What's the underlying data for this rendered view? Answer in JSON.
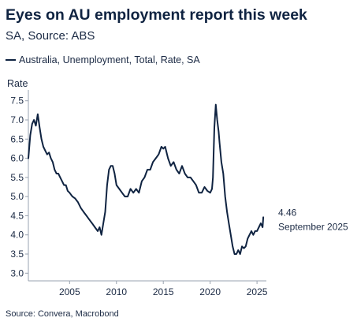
{
  "title": "Eyes on AU employment report this week",
  "subtitle": "SA, Source: ABS",
  "legend": {
    "label": "Australia, Unemployment, Total, Rate, SA"
  },
  "source": "Source: Convera, Macrobond",
  "colors": {
    "line": "#0f2341",
    "axis": "#9aa3b0",
    "text": "#1b2a44"
  },
  "chart_data": {
    "type": "line",
    "title": "Eyes on AU employment report this week",
    "subtitle": "SA, Source: ABS",
    "ylabel": "Rate",
    "xlabel": "",
    "ylim": [
      2.8,
      7.7
    ],
    "xlim": [
      2000.6,
      2026.0
    ],
    "yticks": [
      3.0,
      3.5,
      4.0,
      4.5,
      5.0,
      5.5,
      6.0,
      6.5,
      7.0,
      7.5
    ],
    "ytick_labels": [
      "3.0",
      "3.5",
      "4.0",
      "4.5",
      "5.0",
      "5.5",
      "6.0",
      "6.5",
      "7.0",
      "7.5"
    ],
    "xticks": [
      2005,
      2010,
      2015,
      2020,
      2025
    ],
    "xtick_labels": [
      "2005",
      "2010",
      "2015",
      "2020",
      "2025"
    ],
    "grid": false,
    "legend_position": "top-left",
    "series": [
      {
        "name": "Australia, Unemployment, Total, Rate, SA",
        "x": [
          2000.6,
          2000.8,
          2001.0,
          2001.2,
          2001.4,
          2001.6,
          2001.8,
          2002.0,
          2002.2,
          2002.4,
          2002.6,
          2002.8,
          2003.0,
          2003.2,
          2003.4,
          2003.6,
          2003.8,
          2004.0,
          2004.2,
          2004.4,
          2004.6,
          2004.8,
          2005.0,
          2005.3,
          2005.6,
          2005.9,
          2006.2,
          2006.5,
          2006.8,
          2007.1,
          2007.4,
          2007.7,
          2008.0,
          2008.2,
          2008.4,
          2008.6,
          2008.8,
          2009.0,
          2009.2,
          2009.4,
          2009.6,
          2009.8,
          2010.0,
          2010.3,
          2010.6,
          2010.9,
          2011.2,
          2011.5,
          2011.8,
          2012.1,
          2012.4,
          2012.7,
          2013.0,
          2013.3,
          2013.6,
          2013.9,
          2014.2,
          2014.5,
          2014.8,
          2015.0,
          2015.2,
          2015.5,
          2015.8,
          2016.1,
          2016.4,
          2016.7,
          2017.0,
          2017.3,
          2017.6,
          2017.9,
          2018.2,
          2018.5,
          2018.8,
          2019.1,
          2019.4,
          2019.7,
          2020.0,
          2020.2,
          2020.3,
          2020.45,
          2020.6,
          2020.75,
          2020.9,
          2021.0,
          2021.2,
          2021.4,
          2021.6,
          2021.8,
          2022.0,
          2022.2,
          2022.4,
          2022.6,
          2022.8,
          2023.0,
          2023.2,
          2023.4,
          2023.6,
          2023.8,
          2024.0,
          2024.2,
          2024.4,
          2024.6,
          2024.8,
          2025.0,
          2025.2,
          2025.4,
          2025.6,
          2025.67
        ],
        "values": [
          6.0,
          6.6,
          6.9,
          7.0,
          6.85,
          7.15,
          6.8,
          6.5,
          6.3,
          6.2,
          6.1,
          6.15,
          6.0,
          5.9,
          5.7,
          5.6,
          5.6,
          5.5,
          5.4,
          5.3,
          5.3,
          5.15,
          5.1,
          5.0,
          4.95,
          4.85,
          4.7,
          4.6,
          4.5,
          4.4,
          4.3,
          4.2,
          4.1,
          4.2,
          4.0,
          4.3,
          4.6,
          5.3,
          5.7,
          5.8,
          5.8,
          5.6,
          5.3,
          5.2,
          5.1,
          5.0,
          5.0,
          5.2,
          5.1,
          5.2,
          5.1,
          5.4,
          5.5,
          5.7,
          5.7,
          5.9,
          6.0,
          6.1,
          6.3,
          6.25,
          6.3,
          6.0,
          5.8,
          5.9,
          5.7,
          5.6,
          5.8,
          5.6,
          5.5,
          5.5,
          5.4,
          5.3,
          5.1,
          5.1,
          5.25,
          5.15,
          5.1,
          5.2,
          5.5,
          6.8,
          7.4,
          7.0,
          6.7,
          6.4,
          5.9,
          5.6,
          5.0,
          4.6,
          4.3,
          4.0,
          3.7,
          3.5,
          3.5,
          3.6,
          3.5,
          3.7,
          3.65,
          3.7,
          3.9,
          4.0,
          4.1,
          4.0,
          4.1,
          4.1,
          4.2,
          4.3,
          4.2,
          4.46
        ]
      }
    ],
    "annotations": [
      {
        "text": "4.46",
        "x": 2025.67,
        "y": 4.46
      },
      {
        "text": "September 2025",
        "x": 2025.67,
        "y": 4.46
      }
    ]
  }
}
